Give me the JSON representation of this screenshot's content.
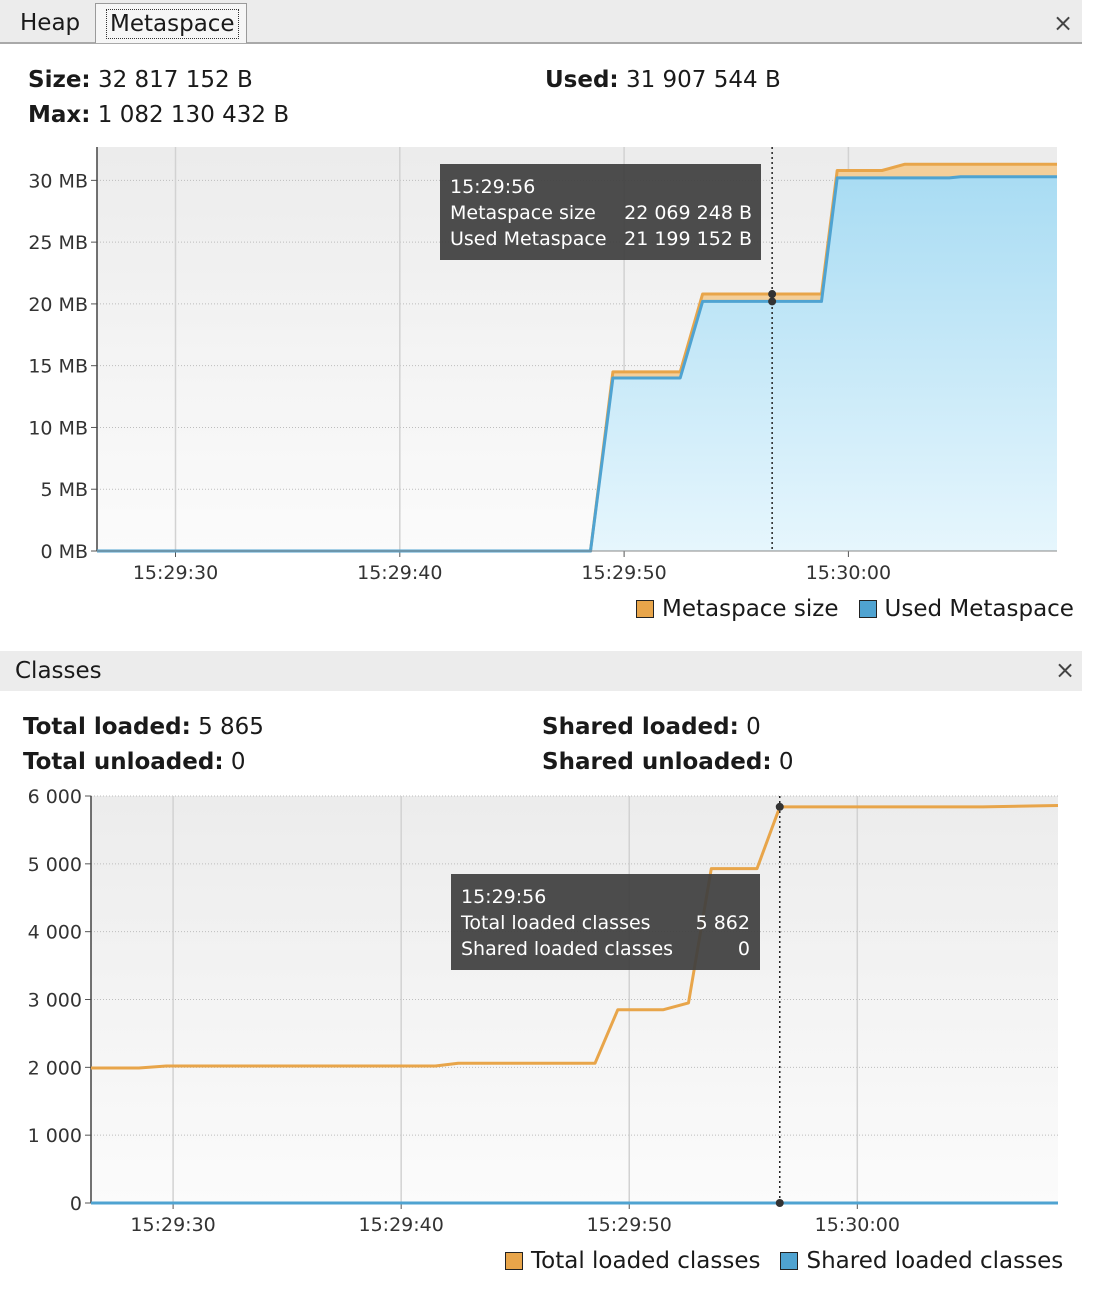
{
  "tabs": [
    {
      "label": "Heap",
      "active": false
    },
    {
      "label": "Metaspace",
      "active": true
    }
  ],
  "metaspace": {
    "size_label": "Size:",
    "size_value": "32 817 152 B",
    "max_label": "Max:",
    "max_value": "1 082 130 432 B",
    "used_label": "Used:",
    "used_value": "31 907 544 B"
  },
  "classes": {
    "title": "Classes",
    "total_loaded_label": "Total loaded:",
    "total_loaded_value": "5 865",
    "total_unloaded_label": "Total unloaded:",
    "total_unloaded_value": "0",
    "shared_loaded_label": "Shared loaded:",
    "shared_loaded_value": "0",
    "shared_unloaded_label": "Shared unloaded:",
    "shared_unloaded_value": "0"
  },
  "close_icon": "×",
  "colors": {
    "orange": "#e8a54a",
    "blue": "#4fa3d1",
    "blue_fill": "#bfe5f7",
    "tooltip_bg": "#4a4a4a"
  },
  "chart_data": [
    {
      "type": "area",
      "x_ticks": [
        "15:29:30",
        "15:29:40",
        "15:29:50",
        "15:30:00"
      ],
      "y_ticks": [
        "0 MB",
        "5 MB",
        "10 MB",
        "15 MB",
        "20 MB",
        "25 MB",
        "30 MB"
      ],
      "ylim": [
        0,
        32.7
      ],
      "y_unit": "MB",
      "x_unit": "seconds after 15:29:30",
      "xlim": [
        -3.5,
        39.3
      ],
      "grid": true,
      "legend_position": "bottom-right",
      "series": [
        {
          "name": "Metaspace size",
          "color": "#e8a54a",
          "points": [
            [
              -3.5,
              0
            ],
            [
              18.5,
              0
            ],
            [
              19.5,
              14.5
            ],
            [
              22.5,
              14.5
            ],
            [
              23.5,
              20.8
            ],
            [
              28.8,
              20.8
            ],
            [
              29.5,
              30.8
            ],
            [
              31.5,
              30.8
            ],
            [
              32.5,
              31.3
            ],
            [
              39.3,
              31.3
            ]
          ]
        },
        {
          "name": "Used Metaspace",
          "color": "#4fa3d1",
          "points": [
            [
              -3.5,
              0
            ],
            [
              18.5,
              0
            ],
            [
              19.5,
              14.0
            ],
            [
              22.5,
              14.0
            ],
            [
              23.5,
              20.2
            ],
            [
              28.8,
              20.2
            ],
            [
              29.5,
              30.2
            ],
            [
              34.5,
              30.2
            ],
            [
              35.0,
              30.3
            ],
            [
              39.3,
              30.3
            ]
          ]
        }
      ],
      "crosshair_x": 26.6,
      "tooltip": {
        "time": "15:29:56",
        "rows": [
          {
            "label": "Metaspace size",
            "value": "22 069 248 B"
          },
          {
            "label": "Used Metaspace",
            "value": "21 199 152 B"
          }
        ]
      }
    },
    {
      "type": "line",
      "x_ticks": [
        "15:29:30",
        "15:29:40",
        "15:29:50",
        "15:30:00"
      ],
      "y_ticks": [
        "0",
        "1 000",
        "2 000",
        "3 000",
        "4 000",
        "5 000",
        "6 000"
      ],
      "ylim": [
        0,
        6000
      ],
      "x_unit": "seconds after 15:29:30",
      "xlim": [
        -3.6,
        38.8
      ],
      "grid": true,
      "legend_position": "bottom-right",
      "series": [
        {
          "name": "Total loaded classes",
          "color": "#e8a54a",
          "points": [
            [
              -3.6,
              1990
            ],
            [
              -1.5,
              1990
            ],
            [
              -0.3,
              2020
            ],
            [
              11.5,
              2020
            ],
            [
              12.5,
              2060
            ],
            [
              18.5,
              2060
            ],
            [
              19.5,
              2850
            ],
            [
              21.5,
              2850
            ],
            [
              22.6,
              2950
            ],
            [
              23.6,
              4930
            ],
            [
              25.6,
              4930
            ],
            [
              26.6,
              5840
            ],
            [
              35.5,
              5840
            ],
            [
              38.8,
              5860
            ]
          ]
        },
        {
          "name": "Shared loaded classes",
          "color": "#4fa3d1",
          "points": [
            [
              -3.6,
              0
            ],
            [
              38.8,
              0
            ]
          ]
        }
      ],
      "crosshair_x": 26.6,
      "tooltip": {
        "time": "15:29:56",
        "rows": [
          {
            "label": "Total loaded classes",
            "value": "5 862"
          },
          {
            "label": "Shared loaded classes",
            "value": "0"
          }
        ]
      }
    }
  ]
}
